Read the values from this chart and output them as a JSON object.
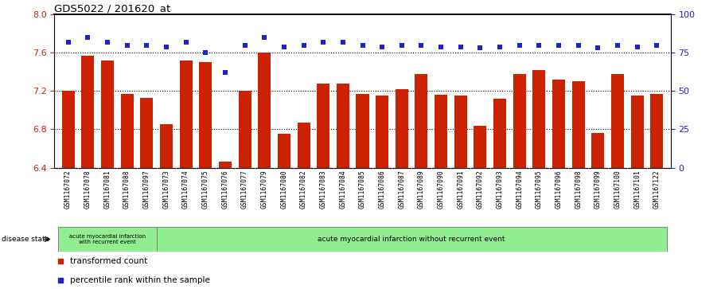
{
  "title": "GDS5022 / 201620_at",
  "samples": [
    "GSM1167072",
    "GSM1167078",
    "GSM1167081",
    "GSM1167088",
    "GSM1167097",
    "GSM1167073",
    "GSM1167074",
    "GSM1167075",
    "GSM1167076",
    "GSM1167077",
    "GSM1167079",
    "GSM1167080",
    "GSM1167082",
    "GSM1167083",
    "GSM1167084",
    "GSM1167085",
    "GSM1167086",
    "GSM1167087",
    "GSM1167089",
    "GSM1167090",
    "GSM1167091",
    "GSM1167092",
    "GSM1167093",
    "GSM1167094",
    "GSM1167095",
    "GSM1167096",
    "GSM1167098",
    "GSM1167099",
    "GSM1167100",
    "GSM1167101",
    "GSM1167122"
  ],
  "bar_values": [
    7.2,
    7.57,
    7.52,
    7.17,
    7.13,
    6.85,
    7.52,
    7.5,
    6.46,
    7.2,
    7.6,
    6.75,
    6.87,
    7.28,
    7.28,
    7.17,
    7.15,
    7.22,
    7.38,
    7.16,
    7.15,
    6.84,
    7.12,
    7.38,
    7.42,
    7.32,
    7.3,
    6.76,
    7.38,
    7.15,
    7.17
  ],
  "percentile_values": [
    82,
    85,
    82,
    80,
    80,
    79,
    82,
    75,
    62,
    80,
    85,
    79,
    80,
    82,
    82,
    80,
    79,
    80,
    80,
    79,
    79,
    78,
    79,
    80,
    80,
    80,
    80,
    78,
    80,
    79,
    80
  ],
  "group1_count": 5,
  "group2_count": 26,
  "group1_label": "acute myocardial infarction\nwith recurrent event",
  "group2_label": "acute myocardial infarction without recurrent event",
  "group_color": "#90EE90",
  "ylim_left": [
    6.4,
    8.0
  ],
  "ylim_right": [
    0,
    100
  ],
  "yticks_left": [
    6.4,
    6.8,
    7.2,
    7.6,
    8.0
  ],
  "yticks_right": [
    0,
    25,
    50,
    75,
    100
  ],
  "bar_color": "#CC2200",
  "dot_color": "#2222CC",
  "left_tick_color": "#CC2200",
  "right_tick_color": "#2222CC",
  "dotted_line_values": [
    6.8,
    7.2,
    7.6
  ],
  "xtick_bg_color": "#CCCCCC",
  "legend_items": [
    {
      "label": "transformed count",
      "color": "#CC2200"
    },
    {
      "label": "percentile rank within the sample",
      "color": "#2222CC"
    }
  ],
  "disease_state_label": "disease state"
}
